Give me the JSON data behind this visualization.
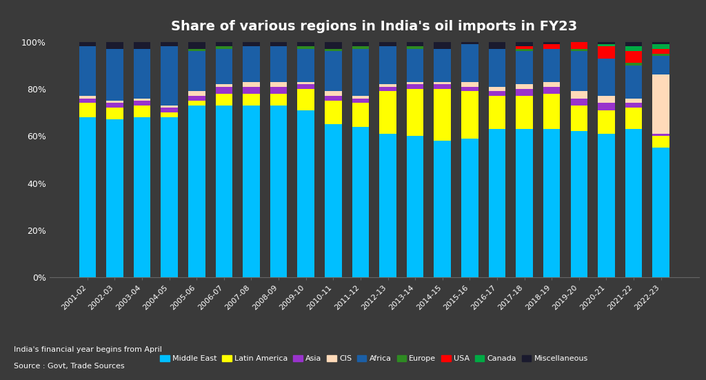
{
  "title": "Share of various regions in India's oil imports in FY23",
  "background_color": "#3a3a3a",
  "text_color": "#ffffff",
  "years": [
    "2001-02",
    "2002-03",
    "2003-04",
    "2004-05",
    "2005-06",
    "2006-07",
    "2007-08",
    "2008-09",
    "2009-10",
    "2010-11",
    "2011-12",
    "2012-13",
    "2013-14",
    "2014-15",
    "2015-16",
    "2016-17",
    "2017-18",
    "2018-19",
    "2019-20",
    "2020-21",
    "2021-22",
    "2022-23"
  ],
  "regions": [
    "Middle East",
    "Latin America",
    "Asia",
    "CIS",
    "Africa",
    "Europe",
    "USA",
    "Canada",
    "Miscellaneous"
  ],
  "colors": [
    "#00BFFF",
    "#FFFF00",
    "#9933CC",
    "#FFDAB9",
    "#1B5FA6",
    "#2E8B22",
    "#FF0000",
    "#00AA44",
    "#1a1a2e"
  ],
  "data": {
    "Middle East": [
      68,
      67,
      68,
      68,
      73,
      73,
      73,
      73,
      71,
      65,
      64,
      61,
      60,
      58,
      59,
      63,
      63,
      63,
      62,
      61,
      63,
      55
    ],
    "Latin America": [
      6,
      5,
      5,
      2,
      2,
      5,
      5,
      5,
      9,
      10,
      10,
      18,
      20,
      22,
      20,
      14,
      14,
      15,
      11,
      10,
      9,
      5
    ],
    "Asia": [
      2,
      2,
      2,
      2,
      2,
      3,
      3,
      3,
      2,
      2,
      2,
      2,
      2,
      2,
      2,
      2,
      3,
      3,
      3,
      3,
      2,
      1
    ],
    "CIS": [
      1,
      1,
      1,
      1,
      2,
      1,
      2,
      2,
      1,
      2,
      1,
      1,
      1,
      1,
      2,
      2,
      2,
      2,
      3,
      3,
      2,
      25
    ],
    "Africa": [
      21,
      22,
      21,
      25,
      17,
      15,
      15,
      15,
      14,
      17,
      20,
      16,
      14,
      14,
      16,
      16,
      14,
      14,
      17,
      16,
      14,
      8
    ],
    "Europe": [
      0,
      0,
      0,
      0,
      1,
      1,
      0,
      0,
      1,
      1,
      1,
      0,
      1,
      0,
      0,
      0,
      1,
      0,
      1,
      0,
      1,
      1
    ],
    "USA": [
      0,
      0,
      0,
      0,
      0,
      0,
      0,
      0,
      0,
      0,
      0,
      0,
      0,
      0,
      0,
      0,
      1,
      2,
      3,
      5,
      5,
      2
    ],
    "Canada": [
      0,
      0,
      0,
      0,
      0,
      0,
      0,
      0,
      0,
      0,
      0,
      0,
      0,
      0,
      0,
      0,
      0,
      0,
      0,
      1,
      2,
      2
    ],
    "Miscellaneous": [
      2,
      3,
      3,
      2,
      3,
      2,
      2,
      2,
      2,
      3,
      2,
      2,
      2,
      3,
      1,
      3,
      2,
      1,
      0,
      1,
      2,
      1
    ]
  },
  "footer_line1": "India's financial year begins from April",
  "footer_line2": "Source : Govt, Trade Sources",
  "ylim": [
    0,
    100
  ],
  "yticks": [
    0,
    20,
    40,
    60,
    80,
    100
  ],
  "ytick_labels": [
    "0%",
    "20%",
    "40%",
    "60%",
    "80%",
    "100%"
  ]
}
